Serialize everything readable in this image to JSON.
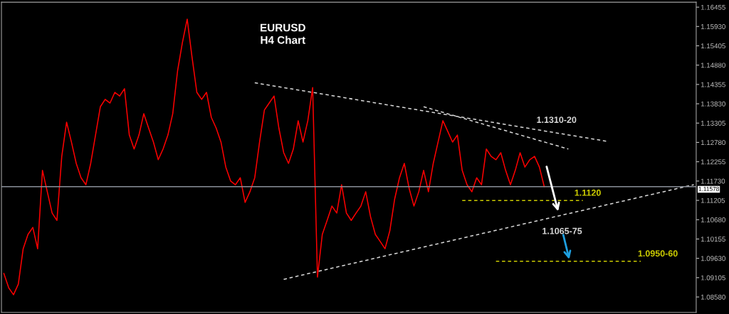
{
  "chart_data": {
    "type": "line",
    "title": "EURUSD",
    "subtitle": "H4 Chart",
    "categories": [
      null,
      null,
      null,
      null,
      null,
      null,
      null,
      null,
      null,
      null,
      null,
      null,
      null,
      null,
      null,
      null,
      null,
      null,
      null,
      null,
      null,
      null,
      null,
      null,
      null,
      null,
      null,
      null,
      null,
      null,
      null,
      null,
      null,
      null,
      null,
      null,
      null,
      null,
      null,
      null,
      null,
      null,
      null,
      null,
      null,
      null,
      null,
      null,
      null,
      null,
      null,
      null,
      null,
      null,
      null,
      null,
      null,
      null,
      null,
      null,
      null,
      null,
      null,
      null,
      null,
      null,
      null,
      null,
      null,
      null,
      null,
      null,
      null,
      null,
      null,
      null,
      null,
      null,
      null,
      null,
      null,
      null,
      null,
      null,
      null,
      null,
      null,
      null,
      null,
      null,
      null,
      null,
      null,
      null,
      null,
      null,
      null,
      null,
      null,
      null,
      null,
      null,
      null,
      null,
      null,
      null,
      null,
      null,
      null,
      null,
      null,
      null,
      null,
      null,
      null,
      null,
      null,
      null,
      null,
      null,
      null,
      null,
      null,
      null,
      null,
      null,
      null,
      null,
      null,
      null,
      null,
      null,
      null,
      null,
      null,
      null,
      null,
      null,
      null,
      null,
      null,
      null,
      null,
      null
    ],
    "ylim": [
      1.0816,
      1.1659
    ],
    "yticks": [
      1.16455,
      {
        "value": 1.1593,
        "label": "1.15930"
      },
      1.15405,
      {
        "value": 1.1488,
        "label": "1.14880"
      },
      1.14355,
      {
        "value": 1.1383,
        "label": "1.13830"
      },
      1.13305,
      {
        "value": 1.1278,
        "label": "1.12780"
      },
      1.12255,
      {
        "value": 1.1173,
        "label": "1.11730"
      },
      1.11205,
      {
        "value": 1.1068,
        "label": "1.10680"
      },
      1.10155,
      {
        "value": 1.0963,
        "label": "1.09630"
      },
      1.09105,
      {
        "value": 1.0858,
        "label": "1.08580"
      }
    ],
    "tick_labels": "y",
    "grid": false,
    "legend": false,
    "series": [
      {
        "color": "#ff0000",
        "line_style": "solid",
        "values": [
          1.0922,
          1.0883,
          1.0864,
          1.0893,
          1.0989,
          1.1028,
          1.1047,
          1.0989,
          1.1202,
          1.1144,
          1.1086,
          1.1066,
          1.124,
          1.1333,
          1.1279,
          1.1221,
          1.1182,
          1.1163,
          1.1221,
          1.1298,
          1.1375,
          1.1395,
          1.1385,
          1.1414,
          1.1404,
          1.1424,
          1.1298,
          1.126,
          1.1298,
          1.1356,
          1.1317,
          1.1279,
          1.1231,
          1.126,
          1.1298,
          1.1356,
          1.1472,
          1.1549,
          1.1613,
          1.151,
          1.1414,
          1.1395,
          1.1414,
          1.1346,
          1.1317,
          1.1279,
          1.1211,
          1.1173,
          1.1163,
          1.1182,
          1.1115,
          1.1144,
          1.1182,
          1.1279,
          1.1366,
          1.1385,
          1.1404,
          1.1317,
          1.125,
          1.1221,
          1.126,
          1.1337,
          1.1279,
          1.1337,
          1.1427,
          1.0912,
          1.1028,
          1.1066,
          1.1105,
          1.1086,
          1.1163,
          1.1086,
          1.1066,
          1.1086,
          1.1105,
          1.1144,
          1.1076,
          1.1028,
          1.1009,
          1.0989,
          1.1038,
          1.1124,
          1.1182,
          1.1221,
          1.1153,
          1.1105,
          1.1144,
          1.1202,
          1.1144,
          1.1221,
          1.1279,
          1.1337,
          1.1308,
          1.1279,
          1.1298,
          1.1202,
          1.1163,
          1.1144,
          1.1182,
          1.1163,
          1.126,
          1.124,
          1.1231,
          1.125,
          1.1202,
          1.1163,
          1.1202,
          1.125,
          1.1211,
          1.1231,
          1.124,
          1.1211,
          1.1158,
          null,
          null,
          null,
          null,
          null,
          null,
          null,
          null,
          null,
          null,
          null,
          null,
          null,
          null,
          null,
          null,
          null,
          null,
          null,
          null,
          null,
          null,
          null,
          null,
          null,
          null,
          null,
          null,
          null,
          null,
          null
        ]
      },
      {
        "name": "1.1310-20",
        "color": "#d8d8d8",
        "line_style": "dashed",
        "values": [
          null,
          null,
          null,
          null,
          null,
          null,
          null,
          null,
          null,
          null,
          null,
          null,
          null,
          null,
          null,
          null,
          null,
          null,
          null,
          null,
          null,
          null,
          null,
          null,
          null,
          null,
          null,
          null,
          null,
          null,
          null,
          null,
          null,
          null,
          null,
          null,
          null,
          null,
          null,
          null,
          null,
          null,
          null,
          null,
          null,
          null,
          null,
          null,
          null,
          null,
          null,
          null,
          1.144,
          null,
          null,
          null,
          null,
          null,
          null,
          null,
          null,
          null,
          null,
          null,
          null,
          null,
          null,
          null,
          null,
          null,
          null,
          null,
          null,
          null,
          null,
          null,
          null,
          null,
          null,
          null,
          null,
          null,
          null,
          null,
          null,
          null,
          null,
          null,
          null,
          null,
          null,
          null,
          null,
          null,
          null,
          null,
          null,
          null,
          null,
          null,
          null,
          null,
          null,
          null,
          null,
          null,
          null,
          null,
          null,
          null,
          null,
          null,
          null,
          null,
          null,
          null,
          null,
          null,
          null,
          null,
          null,
          null,
          null,
          null,
          null,
          1.1281,
          null,
          null,
          null,
          null,
          null,
          null,
          null,
          null,
          null,
          null,
          null,
          null,
          null,
          null,
          null,
          null,
          null,
          null
        ]
      },
      {
        "color": "#d8d8d8",
        "line_style": "dashed",
        "values": [
          null,
          null,
          null,
          null,
          null,
          null,
          null,
          null,
          null,
          null,
          null,
          null,
          null,
          null,
          null,
          null,
          null,
          null,
          null,
          null,
          null,
          null,
          null,
          null,
          null,
          null,
          null,
          null,
          null,
          null,
          null,
          null,
          null,
          null,
          null,
          null,
          null,
          null,
          null,
          null,
          null,
          null,
          null,
          null,
          null,
          null,
          null,
          null,
          null,
          null,
          null,
          null,
          null,
          null,
          null,
          null,
          null,
          null,
          null,
          null,
          null,
          null,
          null,
          null,
          null,
          null,
          null,
          null,
          null,
          null,
          null,
          null,
          null,
          null,
          null,
          null,
          null,
          null,
          null,
          null,
          null,
          null,
          null,
          null,
          null,
          null,
          null,
          1.1375,
          null,
          null,
          null,
          null,
          null,
          null,
          null,
          null,
          null,
          null,
          null,
          null,
          null,
          null,
          null,
          null,
          null,
          null,
          null,
          null,
          null,
          null,
          null,
          null,
          null,
          null,
          null,
          null,
          null,
          1.126,
          null,
          null,
          null,
          null,
          null,
          null,
          null,
          null,
          null,
          null,
          null,
          null,
          null,
          null,
          null,
          null,
          null,
          null,
          null,
          null,
          null,
          null,
          null,
          null,
          null,
          null
        ]
      },
      {
        "name": "1.1065-75",
        "color": "#d8d8d8",
        "line_style": "dashed",
        "values": [
          null,
          null,
          null,
          null,
          null,
          null,
          null,
          null,
          null,
          null,
          null,
          null,
          null,
          null,
          null,
          null,
          null,
          null,
          null,
          null,
          null,
          null,
          null,
          null,
          null,
          null,
          null,
          null,
          null,
          null,
          null,
          null,
          null,
          null,
          null,
          null,
          null,
          null,
          null,
          null,
          null,
          null,
          null,
          null,
          null,
          null,
          null,
          null,
          null,
          null,
          null,
          null,
          null,
          null,
          null,
          null,
          null,
          null,
          1.0906,
          null,
          null,
          null,
          null,
          null,
          null,
          null,
          null,
          null,
          null,
          null,
          null,
          null,
          null,
          null,
          null,
          null,
          null,
          null,
          null,
          null,
          null,
          null,
          null,
          null,
          null,
          null,
          null,
          null,
          null,
          null,
          null,
          null,
          null,
          null,
          null,
          null,
          null,
          null,
          null,
          null,
          null,
          null,
          null,
          null,
          null,
          null,
          null,
          null,
          null,
          null,
          null,
          null,
          null,
          null,
          null,
          null,
          null,
          null,
          null,
          null,
          null,
          null,
          null,
          null,
          null,
          null,
          null,
          null,
          null,
          null,
          null,
          null,
          null,
          null,
          null,
          null,
          null,
          null,
          null,
          null,
          null,
          null,
          null,
          1.1163
        ]
      },
      {
        "name": "1.1120",
        "color": "#cccc00",
        "line_style": "dashed",
        "values": [
          null,
          null,
          null,
          null,
          null,
          null,
          null,
          null,
          null,
          null,
          null,
          null,
          null,
          null,
          null,
          null,
          null,
          null,
          null,
          null,
          null,
          null,
          null,
          null,
          null,
          null,
          null,
          null,
          null,
          null,
          null,
          null,
          null,
          null,
          null,
          null,
          null,
          null,
          null,
          null,
          null,
          null,
          null,
          null,
          null,
          null,
          null,
          null,
          null,
          null,
          null,
          null,
          null,
          null,
          null,
          null,
          null,
          null,
          null,
          null,
          null,
          null,
          null,
          null,
          null,
          null,
          null,
          null,
          null,
          null,
          null,
          null,
          null,
          null,
          null,
          null,
          null,
          null,
          null,
          null,
          null,
          null,
          null,
          null,
          null,
          null,
          null,
          null,
          null,
          null,
          null,
          null,
          null,
          null,
          null,
          1.112,
          null,
          null,
          null,
          null,
          null,
          null,
          null,
          null,
          null,
          null,
          null,
          null,
          null,
          null,
          null,
          null,
          null,
          null,
          null,
          null,
          null,
          null,
          null,
          null,
          1.112,
          null,
          null,
          null,
          null,
          null,
          null,
          null,
          null,
          null,
          null,
          null,
          null,
          null,
          null,
          null,
          null,
          null,
          null,
          null,
          null,
          null,
          null,
          null
        ]
      },
      {
        "name": "1.0950-60",
        "color": "#cccc00",
        "line_style": "dashed",
        "values": [
          null,
          null,
          null,
          null,
          null,
          null,
          null,
          null,
          null,
          null,
          null,
          null,
          null,
          null,
          null,
          null,
          null,
          null,
          null,
          null,
          null,
          null,
          null,
          null,
          null,
          null,
          null,
          null,
          null,
          null,
          null,
          null,
          null,
          null,
          null,
          null,
          null,
          null,
          null,
          null,
          null,
          null,
          null,
          null,
          null,
          null,
          null,
          null,
          null,
          null,
          null,
          null,
          null,
          null,
          null,
          null,
          null,
          null,
          null,
          null,
          null,
          null,
          null,
          null,
          null,
          null,
          null,
          null,
          null,
          null,
          null,
          null,
          null,
          null,
          null,
          null,
          null,
          null,
          null,
          null,
          null,
          null,
          null,
          null,
          null,
          null,
          null,
          null,
          null,
          null,
          null,
          null,
          null,
          null,
          null,
          null,
          null,
          null,
          null,
          null,
          null,
          null,
          1.0955,
          null,
          null,
          null,
          null,
          null,
          null,
          null,
          null,
          null,
          null,
          null,
          null,
          null,
          null,
          null,
          null,
          null,
          null,
          null,
          null,
          null,
          null,
          null,
          null,
          null,
          null,
          null,
          null,
          null,
          1.0955,
          null,
          null,
          null,
          null,
          null,
          null,
          null,
          null,
          null,
          null,
          null
        ]
      }
    ],
    "ref_lines": [
      {
        "axis": "y",
        "value": 1.11578,
        "label": "1.11578",
        "color": "#8a8f99"
      }
    ]
  }
}
